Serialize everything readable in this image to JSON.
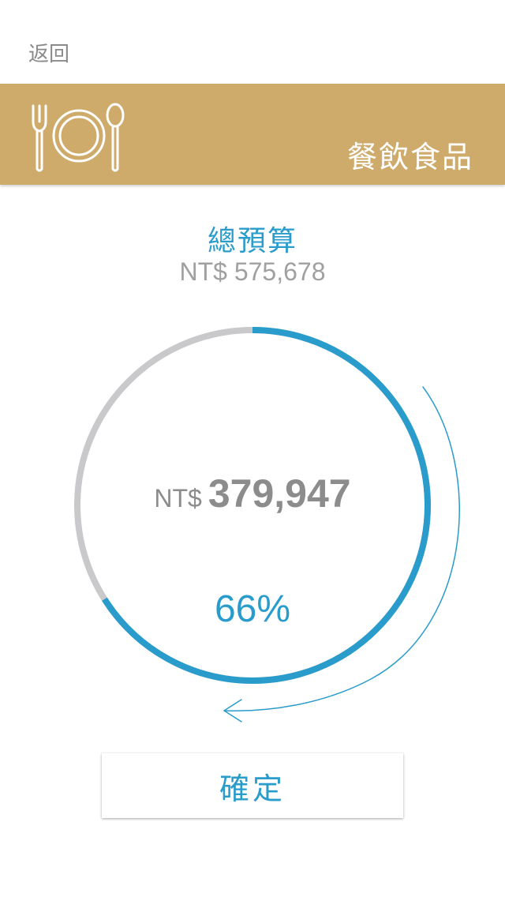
{
  "nav": {
    "back_label": "返回"
  },
  "category": {
    "title": "餐飲食品",
    "icon": "utensils-plate-icon",
    "color": "#cfab6b"
  },
  "budget": {
    "label": "總預算",
    "amount": "NT$ 575,678"
  },
  "gauge": {
    "currency": "NT$",
    "amount": "379,947",
    "percent_label": "66%",
    "percent": 0.66,
    "fill_color": "#2a9ccb",
    "track_color": "#c9c9cc",
    "drag_hint_icon": "curved-arrow-icon"
  },
  "actions": {
    "confirm_label": "確定"
  }
}
